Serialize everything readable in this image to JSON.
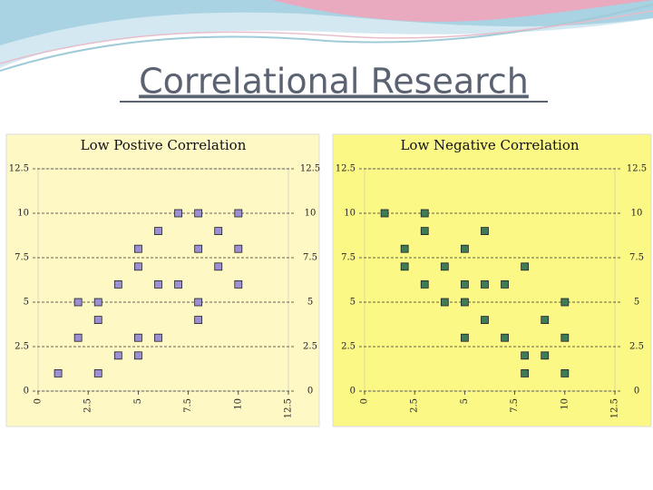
{
  "title": "Correlational Research",
  "chart_data": [
    {
      "type": "scatter",
      "title": "Low Postive Correlation",
      "x": [
        1,
        2,
        2,
        3,
        3,
        3,
        4,
        4,
        5,
        5,
        5,
        5,
        6,
        6,
        6,
        7,
        7,
        8,
        8,
        8,
        8,
        9,
        9,
        10,
        10,
        10
      ],
      "values": [
        1,
        3,
        5,
        1,
        4,
        5,
        2,
        6,
        2,
        3,
        7,
        8,
        3,
        6,
        9,
        6,
        10,
        4,
        5,
        8,
        10,
        7,
        9,
        6,
        8,
        10
      ],
      "color": "#9d8fd6",
      "background": "#fdf8c4",
      "xlim": [
        0,
        12.5
      ],
      "ylim": [
        0,
        12.5
      ],
      "xticks": [
        0,
        2.5,
        5,
        7.5,
        10,
        12.5
      ],
      "yticks": [
        0,
        2.5,
        5,
        7.5,
        10,
        12.5
      ],
      "grid": true
    },
    {
      "type": "scatter",
      "title": "Low Negative Correlation",
      "x": [
        1,
        2,
        2,
        3,
        3,
        3,
        4,
        4,
        5,
        5,
        5,
        5,
        6,
        6,
        6,
        7,
        7,
        8,
        8,
        8,
        9,
        9,
        10,
        10,
        10
      ],
      "values": [
        10,
        8,
        7,
        10,
        9,
        6,
        7,
        5,
        8,
        6,
        5,
        3,
        9,
        6,
        4,
        6,
        3,
        7,
        2,
        1,
        4,
        2,
        5,
        3,
        1
      ],
      "color": "#3d7d55",
      "background": "#fbf886",
      "xlim": [
        0,
        12.5
      ],
      "ylim": [
        0,
        12.5
      ],
      "xticks": [
        0,
        2.5,
        5,
        7.5,
        10,
        12.5
      ],
      "yticks": [
        0,
        2.5,
        5,
        7.5,
        10,
        12.5
      ],
      "grid": true
    }
  ]
}
